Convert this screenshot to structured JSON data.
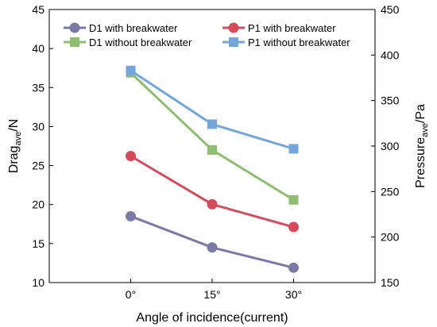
{
  "chart_data": {
    "type": "line",
    "categories": [
      "0°",
      "15°",
      "30°"
    ],
    "xlabel": "Angle of incidence(current)",
    "ylabel_left": {
      "base": "Drag",
      "sub": "ave",
      "suffix": "/N"
    },
    "ylabel_right": {
      "base": "Pressure",
      "sub": "ave",
      "suffix": "/Pa"
    },
    "ylim_left": [
      10,
      45
    ],
    "yticks_left": [
      "10",
      "15",
      "20",
      "25",
      "30",
      "35",
      "40",
      "45"
    ],
    "ylim_right": [
      150,
      450
    ],
    "yticks_right": [
      "150",
      "200",
      "250",
      "300",
      "350",
      "400",
      "450"
    ],
    "legend_position": "top",
    "series": [
      {
        "name": "D1 with breakwater",
        "axis": "left",
        "marker": "circle",
        "color": "#7b79a6",
        "values": [
          18.5,
          14.5,
          11.9
        ]
      },
      {
        "name": "P1 with breakwater",
        "axis": "right",
        "marker": "circle",
        "color": "#d54b5b",
        "values": [
          289,
          236,
          211
        ]
      },
      {
        "name": "D1 without breakwater",
        "axis": "left",
        "marker": "square",
        "color": "#8fbd71",
        "values": [
          36.9,
          27.0,
          20.6
        ]
      },
      {
        "name": "P1 without breakwater",
        "axis": "right",
        "marker": "square",
        "color": "#74a6d9",
        "values": [
          383,
          324,
          297
        ]
      }
    ]
  }
}
